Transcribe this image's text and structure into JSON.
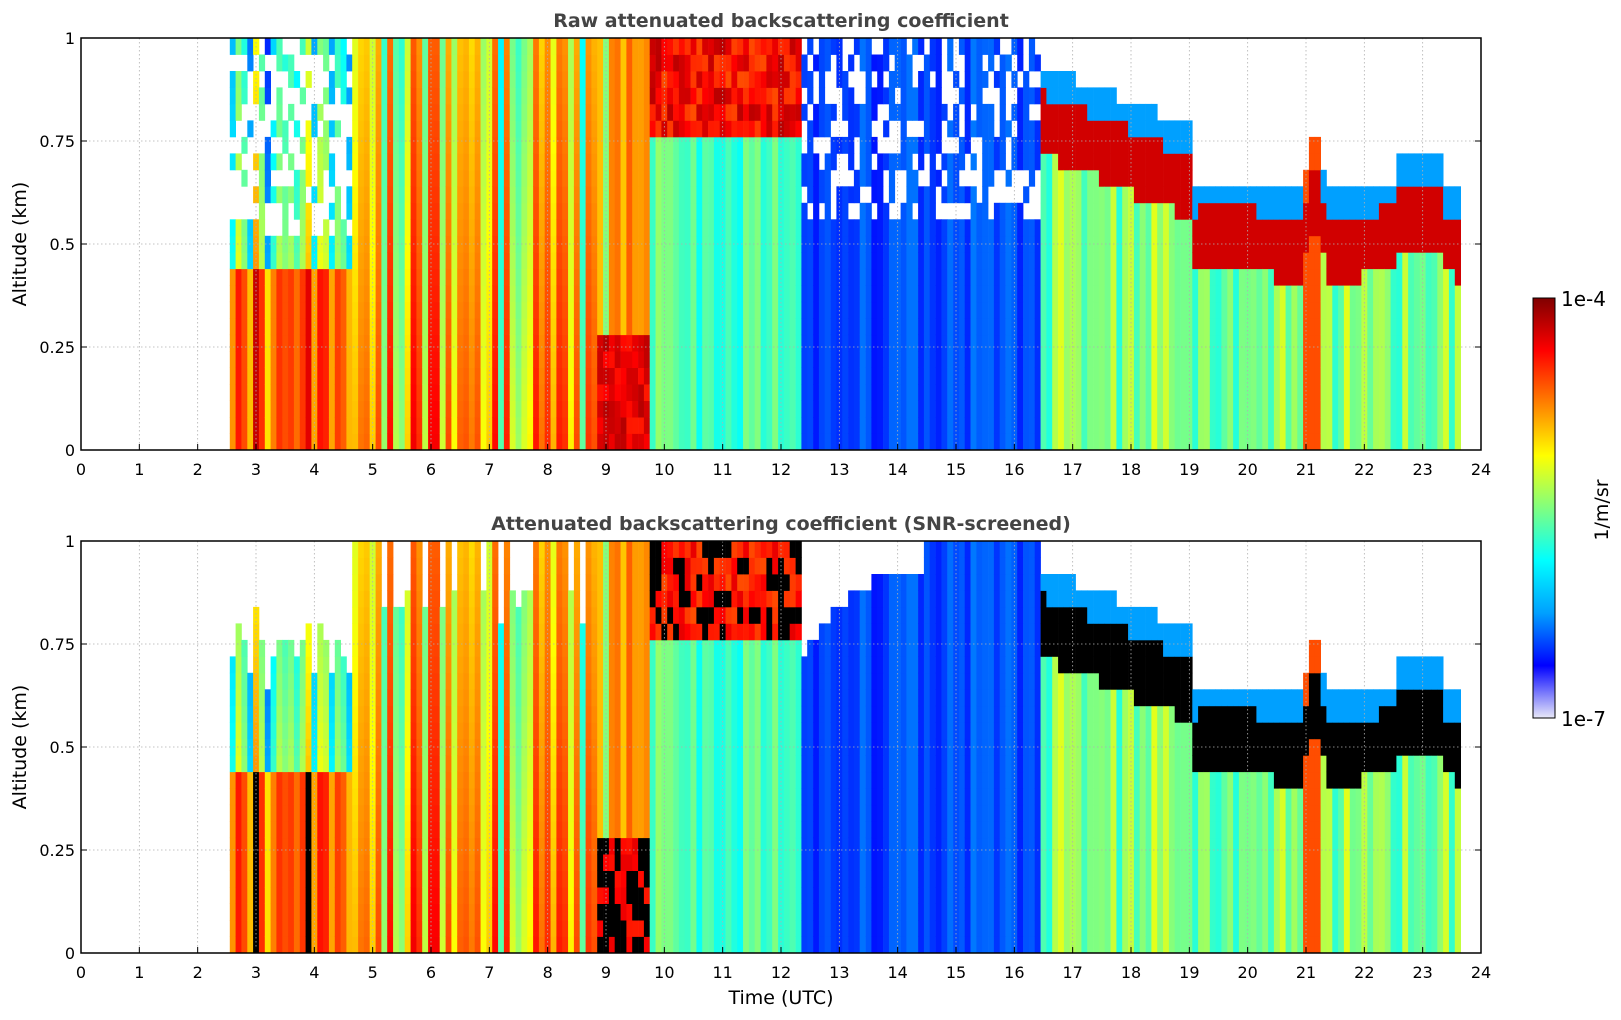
{
  "chart_data": [
    {
      "type": "heatmap",
      "title": "Raw attenuated backscattering coefficient",
      "xlabel": "",
      "ylabel": "Altitude (km)",
      "xlim": [
        0,
        24
      ],
      "ylim": [
        0,
        1
      ],
      "xticks": [
        "0",
        "1",
        "2",
        "3",
        "4",
        "5",
        "6",
        "7",
        "8",
        "9",
        "10",
        "11",
        "12",
        "13",
        "14",
        "15",
        "16",
        "17",
        "18",
        "19",
        "20",
        "21",
        "22",
        "23",
        "24"
      ],
      "yticks": [
        "0",
        "0.25",
        "0.5",
        "0.75",
        "1"
      ],
      "ytick_values": [
        0,
        0.25,
        0.5,
        0.75,
        1
      ],
      "grid": true,
      "data_start_hour": 2.55,
      "data_end_hour": 23.65,
      "regimes": [
        {
          "hours": [
            2.55,
            4.6
          ],
          "description": "low cloud / fog, strong signal below 0.45 km, noisy above"
        },
        {
          "hours": [
            4.6,
            8.8
          ],
          "description": "variable aerosol layer, strong striations to 1 km"
        },
        {
          "hours": [
            8.8,
            9.7
          ],
          "description": "very strong near-surface signal below 0.3 km"
        },
        {
          "hours": [
            9.7,
            12.3
          ],
          "description": "cloud layer above 0.75 km, moderate signal below"
        },
        {
          "hours": [
            12.3,
            16.4
          ],
          "description": "clean, low backscatter column"
        },
        {
          "hours": [
            16.4,
            23.65
          ],
          "description": "descending cloud layer from 0.9 km to about 0.45 km"
        }
      ]
    },
    {
      "type": "heatmap",
      "title": "Attenuated backscattering coefficient (SNR-screened)",
      "xlabel": "Time (UTC)",
      "ylabel": "Altitude (km)",
      "xlim": [
        0,
        24
      ],
      "ylim": [
        0,
        1
      ],
      "xticks": [
        "0",
        "1",
        "2",
        "3",
        "4",
        "5",
        "6",
        "7",
        "8",
        "9",
        "10",
        "11",
        "12",
        "13",
        "14",
        "15",
        "16",
        "17",
        "18",
        "19",
        "20",
        "21",
        "22",
        "23",
        "24"
      ],
      "yticks": [
        "0",
        "0.25",
        "0.5",
        "0.75",
        "1"
      ],
      "ytick_values": [
        0,
        0.25,
        0.5,
        0.75,
        1
      ],
      "grid": true,
      "data_start_hour": 2.55,
      "data_end_hour": 23.65,
      "screening": "pixels with low SNR removed (white); saturated cloud cores shown in black"
    }
  ],
  "colorbar": {
    "label": "1/m/sr",
    "max_label": "1e-4",
    "min_label": "1e-7",
    "scale": "log",
    "range": [
      1e-07,
      0.0001
    ],
    "colors": [
      "#e8e8f8",
      "#0000ff",
      "#00a0ff",
      "#00ffff",
      "#80ff80",
      "#ffff00",
      "#ff8000",
      "#ff0000",
      "#800000"
    ]
  }
}
